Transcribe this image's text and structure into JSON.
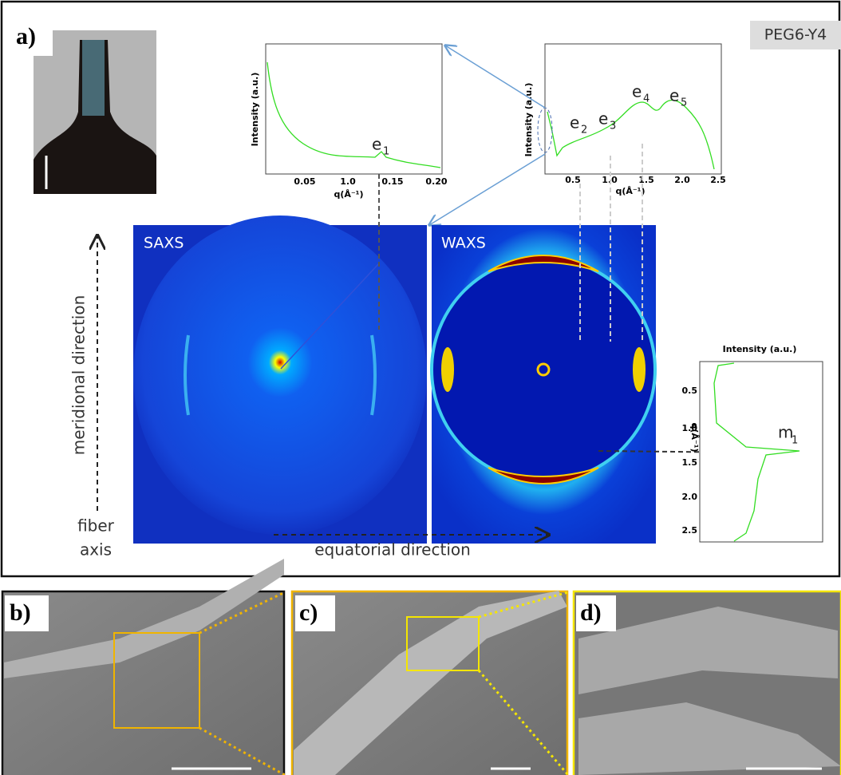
{
  "panel_a": {
    "label": "a)",
    "tag": "PEG6-Y4",
    "saxs_plot": {
      "y_label": "Intensity (a.u.)",
      "x_label": "q(Å⁻¹)",
      "x_ticks": [
        "0.05",
        "1.0",
        "0.15",
        "0.20"
      ],
      "peaks": [
        {
          "base": "e",
          "sub": "1"
        }
      ]
    },
    "waxs_plot": {
      "y_label": "Intensity (a.u.)",
      "x_label": "q(Å⁻¹)",
      "x_ticks": [
        "0.5",
        "1.0",
        "1.5",
        "2.0",
        "2.5"
      ],
      "peaks": [
        {
          "base": "e",
          "sub": "2"
        },
        {
          "base": "e",
          "sub": "3"
        },
        {
          "base": "e",
          "sub": "4"
        },
        {
          "base": "e",
          "sub": "5"
        }
      ]
    },
    "meridional_plot": {
      "title": "Intensity (a.u.)",
      "y_label": "q(Å⁻¹)",
      "y_ticks": [
        "0.5",
        "1.0",
        "1.5",
        "2.0",
        "2.5"
      ],
      "peaks": [
        {
          "base": "m",
          "sub": "1"
        }
      ]
    },
    "saxs_image_label": "SAXS",
    "waxs_image_label": "WAXS",
    "vertical_axis": "meridional direction",
    "fiber_axis": [
      "fiber",
      "axis"
    ],
    "horizontal_axis": "equatorial direction"
  },
  "panel_b": {
    "label": "b)"
  },
  "panel_c": {
    "label": "c)"
  },
  "panel_d": {
    "label": "d)"
  }
}
